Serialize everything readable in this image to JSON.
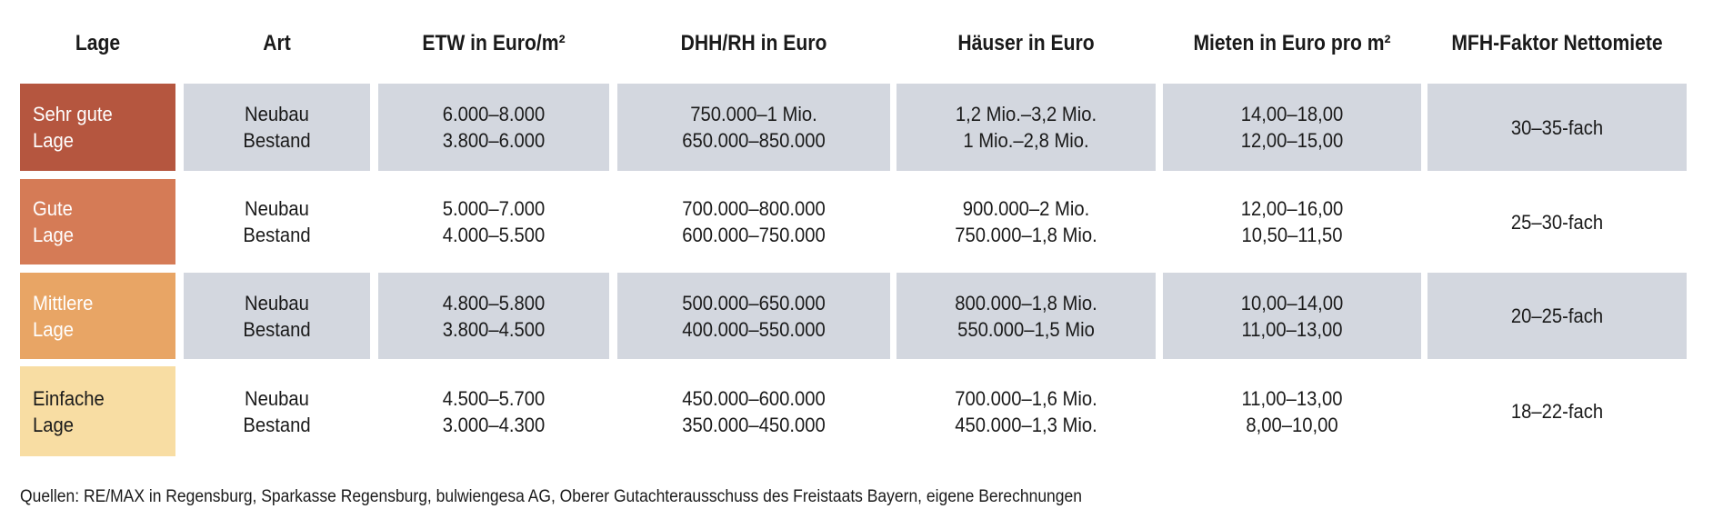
{
  "table": {
    "header": [
      "Lage",
      "Art",
      "ETW in Euro/m²",
      "DHH/RH in Euro",
      "Häuser in Euro",
      "Mieten in Euro pro m²",
      "MFH-Faktor Nettomiete"
    ],
    "rows": [
      {
        "lage": [
          "Sehr gute",
          "Lage"
        ],
        "art": [
          "Neubau",
          "Bestand"
        ],
        "etw": [
          "6.000–8.000",
          "3.800–6.000"
        ],
        "dhh": [
          "750.000–1 Mio.",
          "650.000–850.000"
        ],
        "haeuser": [
          "1,2 Mio.–3,2 Mio.",
          "1 Mio.–2,8 Mio."
        ],
        "mieten": [
          "14,00–18,00",
          "12,00–15,00"
        ],
        "faktor": [
          "30–35-fach"
        ]
      },
      {
        "lage": [
          "Gute",
          "Lage"
        ],
        "art": [
          "Neubau",
          "Bestand"
        ],
        "etw": [
          "5.000–7.000",
          "4.000–5.500"
        ],
        "dhh": [
          "700.000–800.000",
          "600.000–750.000"
        ],
        "haeuser": [
          "900.000–2 Mio.",
          "750.000–1,8 Mio."
        ],
        "mieten": [
          "12,00–16,00",
          "10,50–11,50"
        ],
        "faktor": [
          "25–30-fach"
        ]
      },
      {
        "lage": [
          "Mittlere",
          "Lage"
        ],
        "art": [
          "Neubau",
          "Bestand"
        ],
        "etw": [
          "4.800–5.800",
          "3.800–4.500"
        ],
        "dhh": [
          "500.000–650.000",
          "400.000–550.000"
        ],
        "haeuser": [
          "800.000–1,8 Mio.",
          "550.000–1,5 Mio"
        ],
        "mieten": [
          "10,00–14,00",
          "11,00–13,00"
        ],
        "faktor": [
          "20–25-fach"
        ]
      },
      {
        "lage": [
          "Einfache",
          "Lage"
        ],
        "art": [
          "Neubau",
          "Bestand"
        ],
        "etw": [
          "4.500–5.700",
          "3.000–4.300"
        ],
        "dhh": [
          "450.000–600.000",
          "350.000–450.000"
        ],
        "haeuser": [
          "700.000–1,6 Mio.",
          "450.000–1,3 Mio."
        ],
        "mieten": [
          "11,00–13,00",
          "8,00–10,00"
        ],
        "faktor": [
          "18–22-fach"
        ]
      }
    ]
  },
  "footer": {
    "source": "Quellen: RE/MAX in Regensburg, Sparkasse Regensburg, bulwiengesa AG, Oberer Gutachterausschuss des Freistaats Bayern, eigene Berechnungen"
  }
}
